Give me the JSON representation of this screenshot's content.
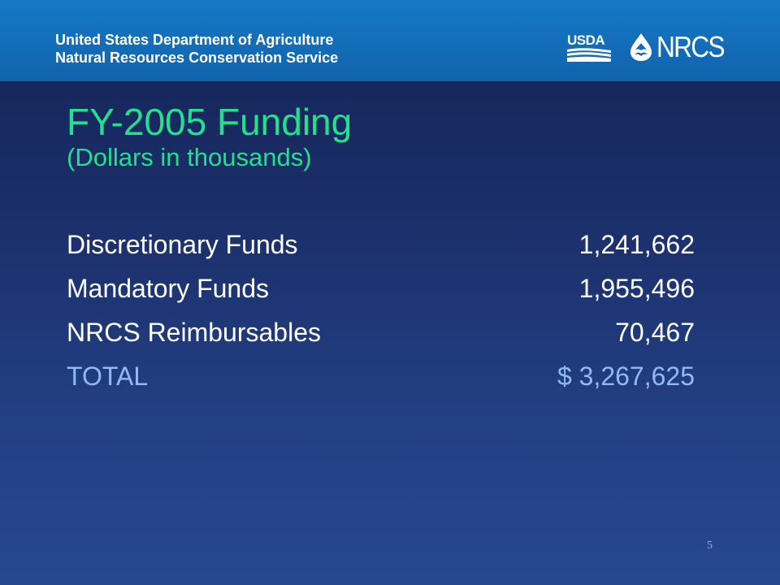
{
  "header": {
    "agency_line1": "United States Department of Agriculture",
    "agency_line2": "Natural Resources Conservation Service",
    "usda_logo_text": "USDA",
    "nrcs_logo_text": "NRCS"
  },
  "slide": {
    "title": "FY-2005 Funding",
    "subtitle": "(Dollars in thousands)",
    "rows": [
      {
        "label": "Discretionary Funds",
        "value": "1,241,662"
      },
      {
        "label": "Mandatory Funds",
        "value": "1,955,496"
      },
      {
        "label": "NRCS Reimbursables",
        "value": "70,467"
      },
      {
        "label": "TOTAL",
        "value": "$ 3,267,625"
      }
    ],
    "page_number": "5"
  },
  "colors": {
    "header": "#1679c6",
    "background": "#1b2e68",
    "title": "#22e08c",
    "text": "#ffffff",
    "total": "#8fbcf0"
  },
  "icons": [
    "usda-logo-icon",
    "water-drop-icon"
  ]
}
